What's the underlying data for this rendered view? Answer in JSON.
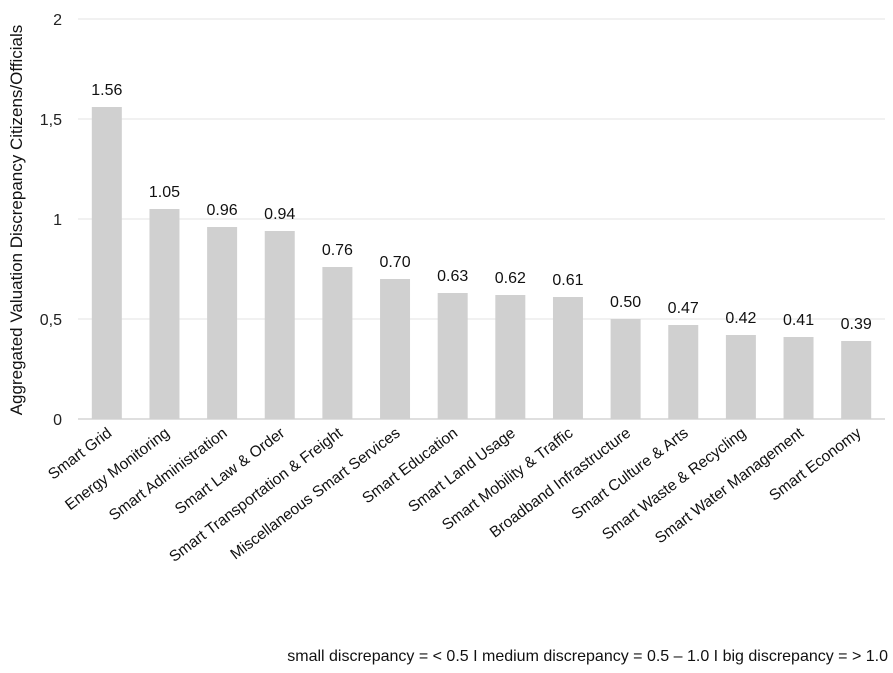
{
  "chart_data": {
    "type": "bar",
    "title": "",
    "xlabel": "",
    "ylabel": "Aggregated Valuation Discrepancy Citizens/Officials",
    "ylim": [
      0,
      2
    ],
    "yticks": [
      0,
      0.5,
      1,
      1.5,
      2
    ],
    "ytick_labels": [
      "0",
      "0,5",
      "1",
      "1,5",
      "2"
    ],
    "grid": "horizontal",
    "bar_color": "#d0d0d0",
    "categories": [
      "Smart Grid",
      "Energy Monitoring",
      "Smart Administration",
      "Smart Law & Order",
      "Smart Transportation & Freight",
      "Miscellaneous Smart Services",
      "Smart Education",
      "Smart Land Usage",
      "Smart Mobility & Traffic",
      "Broadband Infrastructure",
      "Smart Culture & Arts",
      "Smart Waste & Recycling",
      "Smart Water Management",
      "Smart Economy"
    ],
    "values": [
      1.56,
      1.05,
      0.96,
      0.94,
      0.76,
      0.7,
      0.63,
      0.62,
      0.61,
      0.5,
      0.47,
      0.42,
      0.41,
      0.39
    ],
    "data_labels": [
      "1.56",
      "1.05",
      "0.96",
      "0.94",
      "0.76",
      "0.70",
      "0.63",
      "0.62",
      "0.61",
      "0.50",
      "0.47",
      "0.42",
      "0.41",
      "0.39"
    ]
  },
  "footnote": "small discrepancy = < 0.5 I medium discrepancy = 0.5 – 1.0 I big discrepancy = > 1.0"
}
